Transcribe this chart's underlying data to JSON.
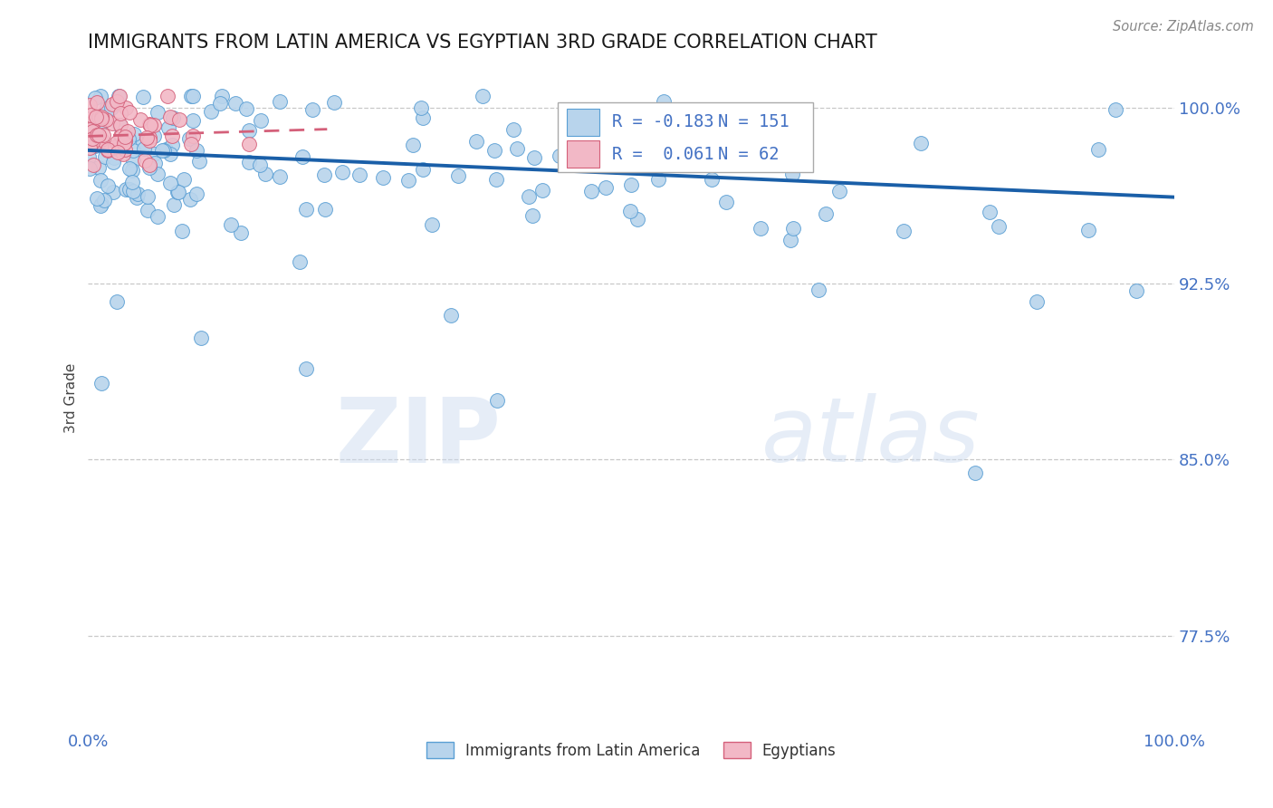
{
  "title": "IMMIGRANTS FROM LATIN AMERICA VS EGYPTIAN 3RD GRADE CORRELATION CHART",
  "source": "Source: ZipAtlas.com",
  "ylabel": "3rd Grade",
  "xlim": [
    0.0,
    1.0
  ],
  "ylim": [
    0.735,
    1.018
  ],
  "yticks": [
    0.775,
    0.85,
    0.925,
    1.0
  ],
  "ytick_labels": [
    "77.5%",
    "85.0%",
    "92.5%",
    "100.0%"
  ],
  "xtick_labels": [
    "0.0%",
    "100.0%"
  ],
  "xticks": [
    0.0,
    1.0
  ],
  "series1_label": "Immigrants from Latin America",
  "series1_R": -0.183,
  "series1_N": 151,
  "series1_color": "#b8d4ec",
  "series1_edge": "#5a9fd4",
  "series1_trend_color": "#1a5fa8",
  "series2_label": "Egyptians",
  "series2_R": 0.061,
  "series2_N": 62,
  "series2_color": "#f2b8c6",
  "series2_edge": "#d4607a",
  "series2_trend_color": "#d4607a",
  "watermark_zip": "ZIP",
  "watermark_atlas": "atlas",
  "title_color": "#1a1a1a",
  "axis_color": "#4472c4",
  "grid_color": "#c8c8c8",
  "background_color": "#ffffff",
  "trend1_x0": 0.0,
  "trend1_x1": 1.0,
  "trend1_y0": 0.982,
  "trend1_y1": 0.962,
  "trend2_x0": 0.0,
  "trend2_x1": 0.22,
  "trend2_y0": 0.988,
  "trend2_y1": 0.991
}
